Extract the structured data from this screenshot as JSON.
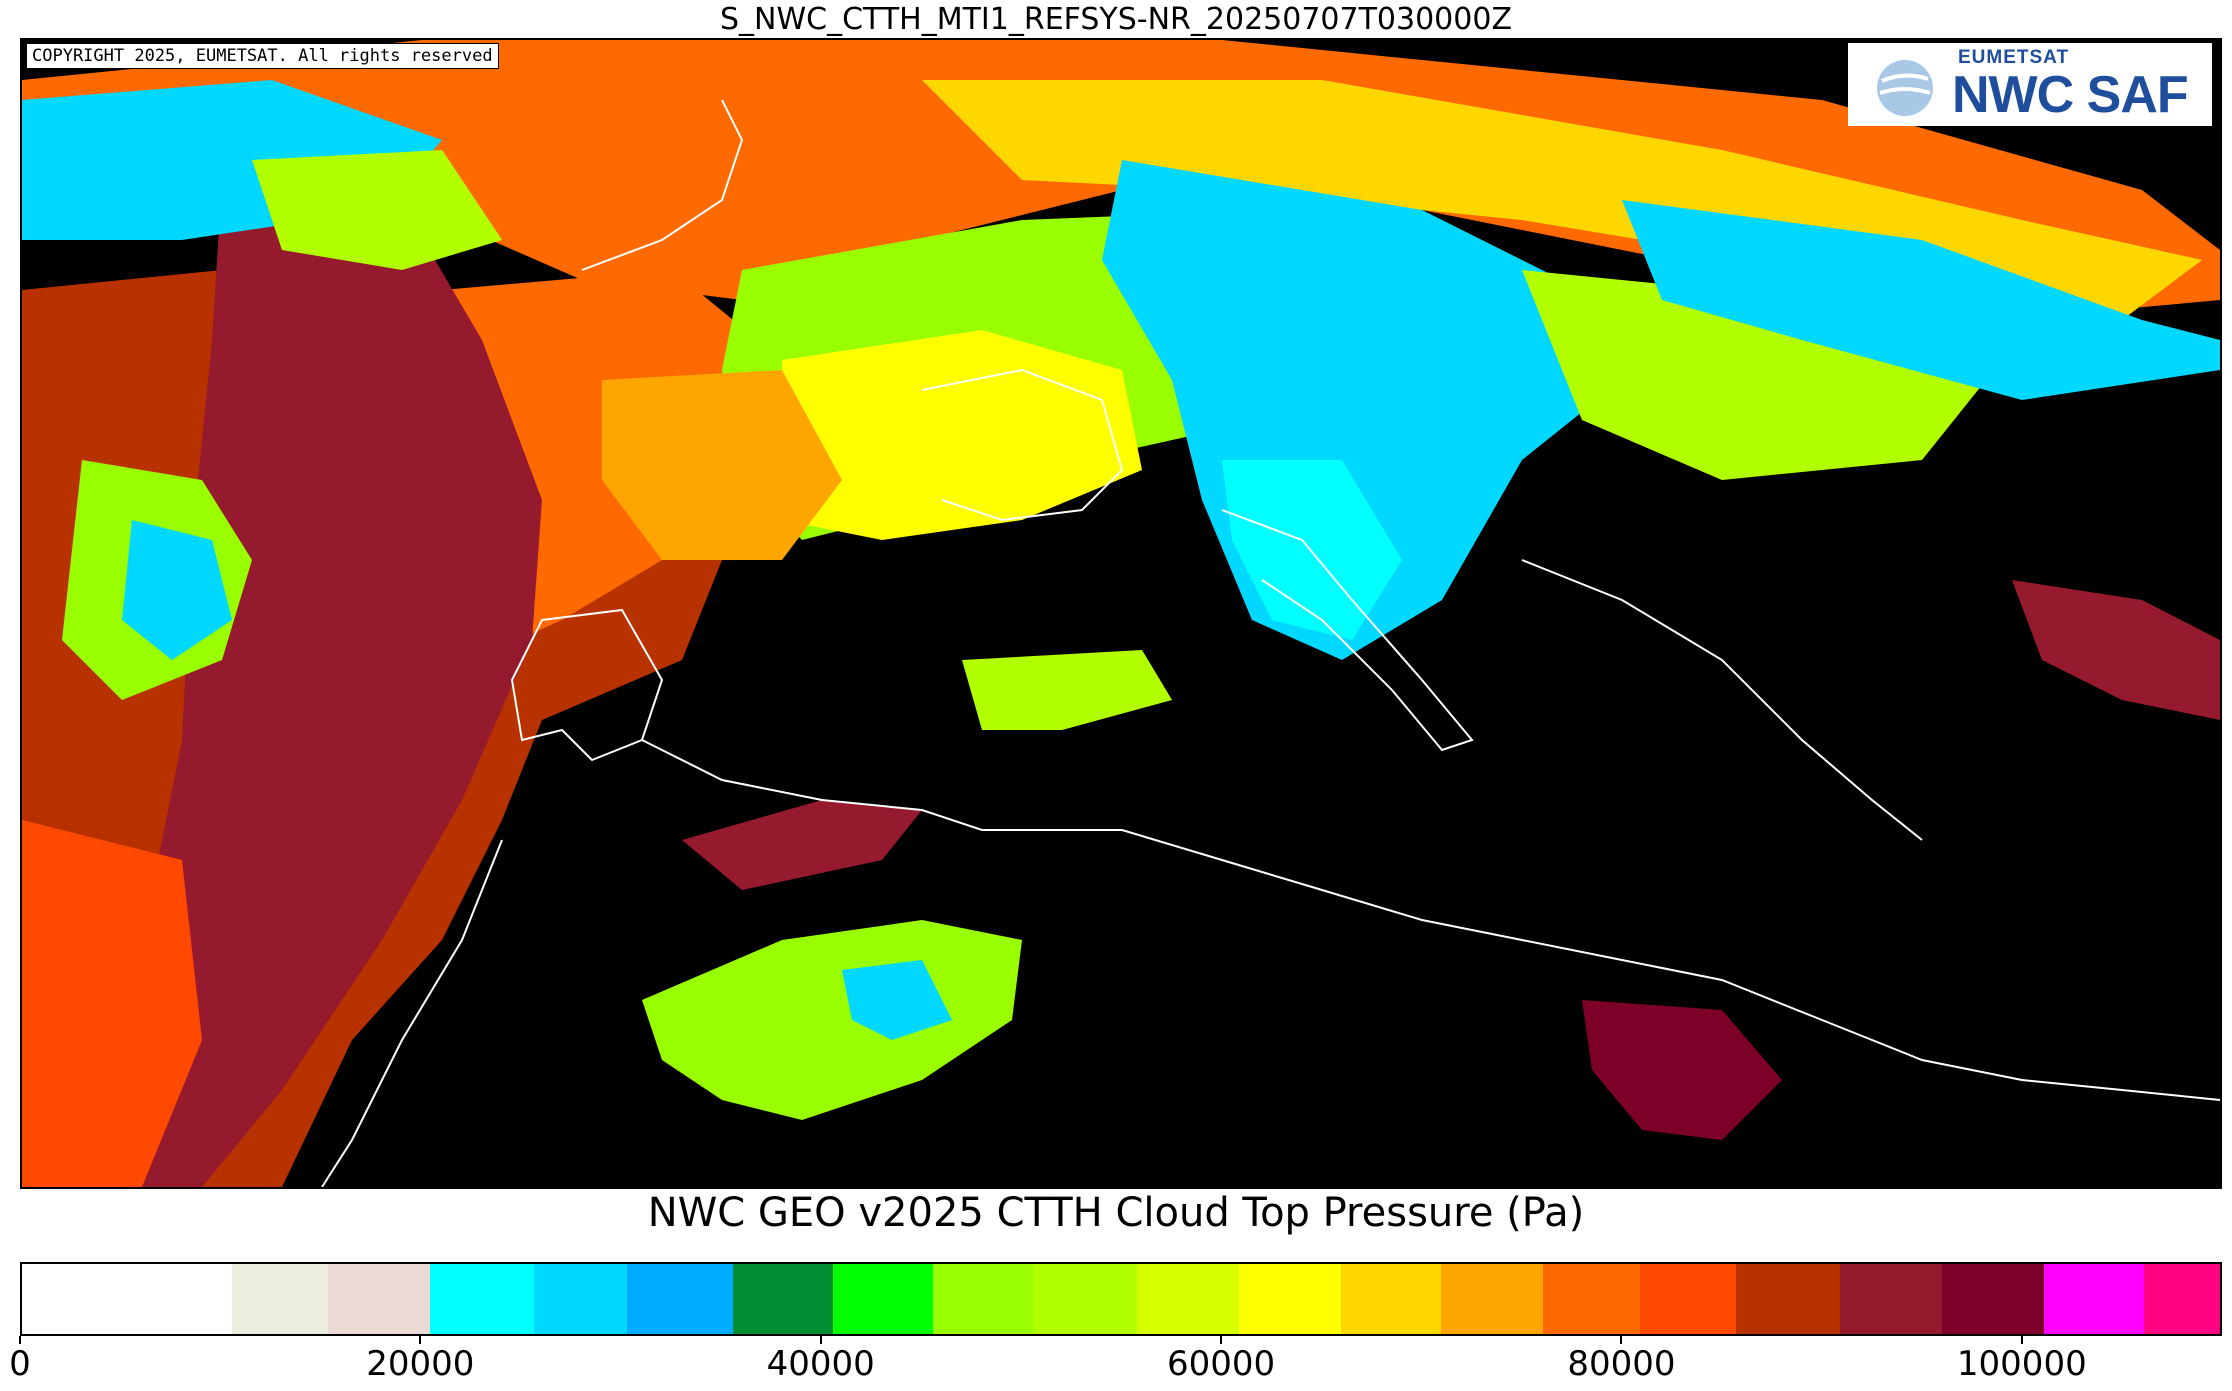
{
  "title": "S_NWC_CTTH_MTI1_REFSYS-NR_20250707T030000Z",
  "copyright": "COPYRIGHT 2025, EUMETSAT. All rights reserved",
  "logo": {
    "top": "EUMETSAT",
    "main": "NWC SAF"
  },
  "colorbar_title": "NWC GEO v2025 CTTH Cloud Top Pressure (Pa)",
  "colorbar": {
    "min": 0,
    "max": 110000,
    "ticks": [
      "0",
      "20000",
      "40000",
      "60000",
      "80000",
      "100000"
    ],
    "tick_values": [
      0,
      20000,
      40000,
      60000,
      80000,
      100000
    ],
    "bins": [
      {
        "from": 0,
        "to": 10500,
        "color": "#ffffff"
      },
      {
        "from": 10500,
        "to": 15300,
        "color": "#ececdf"
      },
      {
        "from": 15300,
        "to": 20400,
        "color": "#ead9d5"
      },
      {
        "from": 20400,
        "to": 25600,
        "color": "#00ffff"
      },
      {
        "from": 25600,
        "to": 30300,
        "color": "#00d8ff"
      },
      {
        "from": 30300,
        "to": 35600,
        "color": "#00acff"
      },
      {
        "from": 35600,
        "to": 40600,
        "color": "#008c30"
      },
      {
        "from": 40600,
        "to": 45600,
        "color": "#00ff00"
      },
      {
        "from": 45600,
        "to": 50600,
        "color": "#99ff00"
      },
      {
        "from": 50600,
        "to": 55800,
        "color": "#b2ff00"
      },
      {
        "from": 55800,
        "to": 60900,
        "color": "#d6ff00"
      },
      {
        "from": 60900,
        "to": 66000,
        "color": "#ffff00"
      },
      {
        "from": 66000,
        "to": 71000,
        "color": "#ffd700"
      },
      {
        "from": 71000,
        "to": 76100,
        "color": "#ffa500"
      },
      {
        "from": 76100,
        "to": 81000,
        "color": "#ff6a00"
      },
      {
        "from": 81000,
        "to": 85800,
        "color": "#ff4800"
      },
      {
        "from": 85800,
        "to": 91000,
        "color": "#b83200"
      },
      {
        "from": 91000,
        "to": 96100,
        "color": "#961a2e"
      },
      {
        "from": 96100,
        "to": 101200,
        "color": "#7d0028"
      },
      {
        "from": 101200,
        "to": 106200,
        "color": "#ff00ff"
      },
      {
        "from": 106200,
        "to": 110000,
        "color": "#ff0080"
      }
    ]
  },
  "colors": {
    "background": "#000000",
    "coastline": "#ffffff",
    "cloud_high": "#00d8ff",
    "cloud_mid": "#b2ff00",
    "cloud_low": "#ff6a00",
    "cloud_lowest": "#961a2e"
  }
}
